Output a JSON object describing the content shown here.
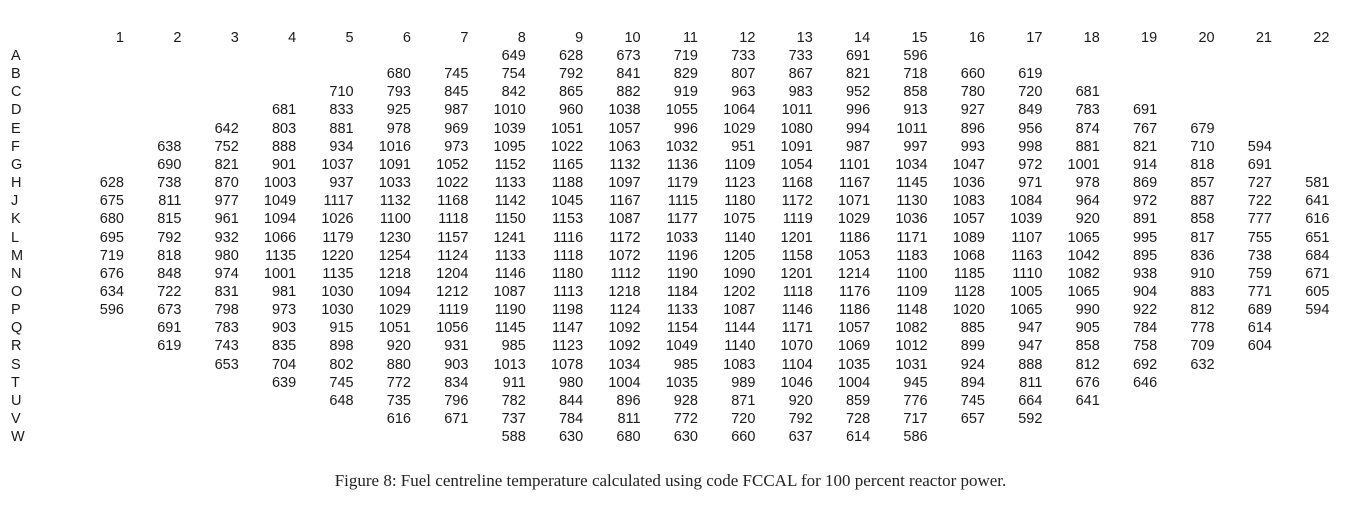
{
  "table": {
    "columns": [
      "1",
      "2",
      "3",
      "4",
      "5",
      "6",
      "7",
      "8",
      "9",
      "10",
      "11",
      "12",
      "13",
      "14",
      "15",
      "16",
      "17",
      "18",
      "19",
      "20",
      "21",
      "22"
    ],
    "rows": [
      {
        "label": "A",
        "start": 8,
        "values": [
          "649",
          "628",
          "673",
          "719",
          "733",
          "733",
          "691",
          "596"
        ]
      },
      {
        "label": "B",
        "start": 6,
        "values": [
          "680",
          "745",
          "754",
          "792",
          "841",
          "829",
          "807",
          "867",
          "821",
          "718",
          "660",
          "619"
        ]
      },
      {
        "label": "C",
        "start": 5,
        "values": [
          "710",
          "793",
          "845",
          "842",
          "865",
          "882",
          "919",
          "963",
          "983",
          "952",
          "858",
          "780",
          "720",
          "681"
        ]
      },
      {
        "label": "D",
        "start": 4,
        "values": [
          "681",
          "833",
          "925",
          "987",
          "1010",
          "960",
          "1038",
          "1055",
          "1064",
          "1011",
          "996",
          "913",
          "927",
          "849",
          "783",
          "691"
        ]
      },
      {
        "label": "E",
        "start": 3,
        "values": [
          "642",
          "803",
          "881",
          "978",
          "969",
          "1039",
          "1051",
          "1057",
          "996",
          "1029",
          "1080",
          "994",
          "1011",
          "896",
          "956",
          "874",
          "767",
          "679"
        ]
      },
      {
        "label": "F",
        "start": 2,
        "values": [
          "638",
          "752",
          "888",
          "934",
          "1016",
          "973",
          "1095",
          "1022",
          "1063",
          "1032",
          "951",
          "1091",
          "987",
          "997",
          "993",
          "998",
          "881",
          "821",
          "710",
          "594"
        ]
      },
      {
        "label": "G",
        "start": 2,
        "values": [
          "690",
          "821",
          "901",
          "1037",
          "1091",
          "1052",
          "1152",
          "1165",
          "1132",
          "1136",
          "1109",
          "1054",
          "1101",
          "1034",
          "1047",
          "972",
          "1001",
          "914",
          "818",
          "691"
        ]
      },
      {
        "label": "H",
        "start": 1,
        "values": [
          "628",
          "738",
          "870",
          "1003",
          "937",
          "1033",
          "1022",
          "1133",
          "1188",
          "1097",
          "1179",
          "1123",
          "1168",
          "1167",
          "1145",
          "1036",
          "971",
          "978",
          "869",
          "857",
          "727",
          "581"
        ]
      },
      {
        "label": "J",
        "start": 1,
        "values": [
          "675",
          "811",
          "977",
          "1049",
          "1117",
          "1132",
          "1168",
          "1142",
          "1045",
          "1167",
          "1115",
          "1180",
          "1172",
          "1071",
          "1130",
          "1083",
          "1084",
          "964",
          "972",
          "887",
          "722",
          "641"
        ]
      },
      {
        "label": "K",
        "start": 1,
        "values": [
          "680",
          "815",
          "961",
          "1094",
          "1026",
          "1100",
          "1118",
          "1150",
          "1153",
          "1087",
          "1177",
          "1075",
          "1119",
          "1029",
          "1036",
          "1057",
          "1039",
          "920",
          "891",
          "858",
          "777",
          "616"
        ]
      },
      {
        "label": "L",
        "start": 1,
        "values": [
          "695",
          "792",
          "932",
          "1066",
          "1179",
          "1230",
          "1157",
          "1241",
          "1116",
          "1172",
          "1033",
          "1140",
          "1201",
          "1186",
          "1171",
          "1089",
          "1107",
          "1065",
          "995",
          "817",
          "755",
          "651"
        ]
      },
      {
        "label": "M",
        "start": 1,
        "values": [
          "719",
          "818",
          "980",
          "1135",
          "1220",
          "1254",
          "1124",
          "1133",
          "1118",
          "1072",
          "1196",
          "1205",
          "1158",
          "1053",
          "1183",
          "1068",
          "1163",
          "1042",
          "895",
          "836",
          "738",
          "684"
        ]
      },
      {
        "label": "N",
        "start": 1,
        "values": [
          "676",
          "848",
          "974",
          "1001",
          "1135",
          "1218",
          "1204",
          "1146",
          "1180",
          "1112",
          "1190",
          "1090",
          "1201",
          "1214",
          "1100",
          "1185",
          "1110",
          "1082",
          "938",
          "910",
          "759",
          "671"
        ]
      },
      {
        "label": "O",
        "start": 1,
        "values": [
          "634",
          "722",
          "831",
          "981",
          "1030",
          "1094",
          "1212",
          "1087",
          "1113",
          "1218",
          "1184",
          "1202",
          "1118",
          "1176",
          "1109",
          "1128",
          "1005",
          "1065",
          "904",
          "883",
          "771",
          "605"
        ]
      },
      {
        "label": "P",
        "start": 1,
        "values": [
          "596",
          "673",
          "798",
          "973",
          "1030",
          "1029",
          "1119",
          "1190",
          "1198",
          "1124",
          "1133",
          "1087",
          "1146",
          "1186",
          "1148",
          "1020",
          "1065",
          "990",
          "922",
          "812",
          "689",
          "594"
        ]
      },
      {
        "label": "Q",
        "start": 2,
        "values": [
          "691",
          "783",
          "903",
          "915",
          "1051",
          "1056",
          "1145",
          "1147",
          "1092",
          "1154",
          "1144",
          "1171",
          "1057",
          "1082",
          "885",
          "947",
          "905",
          "784",
          "778",
          "614"
        ]
      },
      {
        "label": "R",
        "start": 2,
        "values": [
          "619",
          "743",
          "835",
          "898",
          "920",
          "931",
          "985",
          "1123",
          "1092",
          "1049",
          "1140",
          "1070",
          "1069",
          "1012",
          "899",
          "947",
          "858",
          "758",
          "709",
          "604"
        ]
      },
      {
        "label": "S",
        "start": 3,
        "values": [
          "653",
          "704",
          "802",
          "880",
          "903",
          "1013",
          "1078",
          "1034",
          "985",
          "1083",
          "1104",
          "1035",
          "1031",
          "924",
          "888",
          "812",
          "692",
          "632"
        ]
      },
      {
        "label": "T",
        "start": 4,
        "values": [
          "639",
          "745",
          "772",
          "834",
          "911",
          "980",
          "1004",
          "1035",
          "989",
          "1046",
          "1004",
          "945",
          "894",
          "811",
          "676",
          "646"
        ]
      },
      {
        "label": "U",
        "start": 5,
        "values": [
          "648",
          "735",
          "796",
          "782",
          "844",
          "896",
          "928",
          "871",
          "920",
          "859",
          "776",
          "745",
          "664",
          "641"
        ]
      },
      {
        "label": "V",
        "start": 6,
        "values": [
          "616",
          "671",
          "737",
          "784",
          "811",
          "772",
          "720",
          "792",
          "728",
          "717",
          "657",
          "592"
        ]
      },
      {
        "label": "W",
        "start": 8,
        "values": [
          "588",
          "630",
          "680",
          "630",
          "660",
          "637",
          "614",
          "586"
        ]
      }
    ]
  },
  "caption": "Figure 8: Fuel centreline temperature calculated using code FCCAL for 100 percent reactor power."
}
